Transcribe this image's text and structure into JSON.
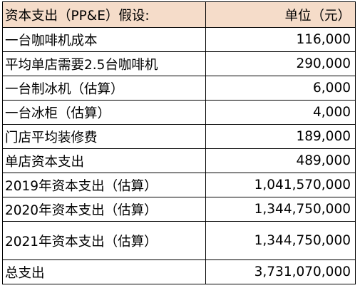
{
  "table": {
    "header": {
      "label": "资本支出（PP&E）假设:",
      "value": "单位（元）",
      "background": "#f5dcc9"
    },
    "rows": [
      {
        "label": "一台咖啡机成本",
        "value": "116,000"
      },
      {
        "label": "平均单店需要2.5台咖啡机",
        "value": "290,000"
      },
      {
        "label": "一台制冰机（估算）",
        "value": "6,000"
      },
      {
        "label": "一台冰柜（估算）",
        "value": "4,000"
      },
      {
        "label": "门店平均装修费",
        "value": "189,000"
      },
      {
        "label": "单店资本支出",
        "value": "489,000"
      },
      {
        "label": "2019年资本支出（估算）",
        "value": "1,041,570,000"
      },
      {
        "label": "2020年资本支出（估算）",
        "value": "1,344,750,000"
      },
      {
        "label": "2021年资本支出（估算）",
        "value": "1,344,750,000"
      },
      {
        "label": "总支出",
        "value": "3,731,070,000"
      }
    ]
  }
}
